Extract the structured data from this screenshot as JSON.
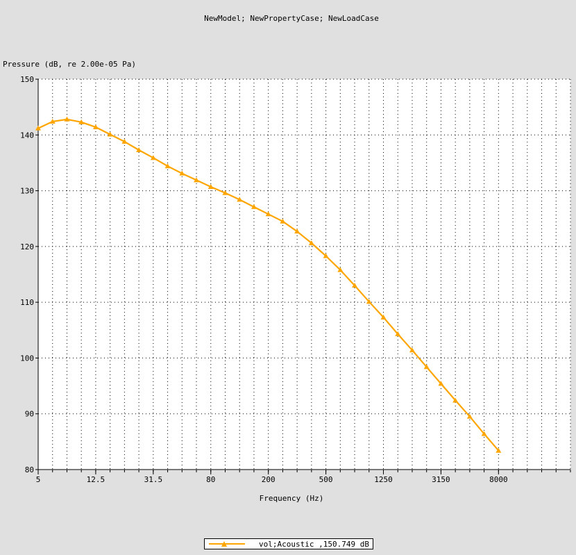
{
  "chart_data": {
    "type": "line",
    "title": "NewModel; NewPropertyCase; NewLoadCase",
    "ylabel": "Pressure (dB, re 2.00e-05 Pa)",
    "xlabel": "Frequency (Hz)",
    "x_scale": "log (1/3-octave bands)",
    "ylim": [
      80,
      150
    ],
    "yticks": [
      80,
      90,
      100,
      110,
      120,
      130,
      140,
      150
    ],
    "x_tick_labels": [
      "5",
      "12.5",
      "31.5",
      "80",
      "200",
      "500",
      "1250",
      "3150",
      "8000"
    ],
    "x_bands": [
      "5",
      "6.3",
      "8",
      "10",
      "12.5",
      "16",
      "20",
      "25",
      "31.5",
      "40",
      "50",
      "63",
      "80",
      "100",
      "125",
      "160",
      "200",
      "250",
      "315",
      "400",
      "500",
      "630",
      "800",
      "1000",
      "1250",
      "1600",
      "2000",
      "2500",
      "3150",
      "4000",
      "5000",
      "6300",
      "8000",
      "10000",
      "12500",
      "16000",
      "20000"
    ],
    "grid": true,
    "legend_position": "bottom-center",
    "series": [
      {
        "name": "vol;Acoustic ,150.749 dB",
        "color": "#ffa500",
        "marker": "triangle",
        "x": [
          "5",
          "6.3",
          "8",
          "10",
          "12.5",
          "16",
          "20",
          "25",
          "31.5",
          "40",
          "50",
          "63",
          "80",
          "100",
          "125",
          "160",
          "200",
          "250",
          "315",
          "400",
          "500",
          "630",
          "800",
          "1000",
          "1250",
          "1600",
          "2000",
          "2500",
          "3150",
          "4000",
          "5000",
          "6300",
          "8000"
        ],
        "y": [
          141.2,
          142.4,
          142.8,
          142.3,
          141.4,
          140.1,
          138.8,
          137.3,
          135.9,
          134.4,
          133.1,
          131.9,
          130.7,
          129.6,
          128.4,
          127.1,
          125.8,
          124.5,
          122.7,
          120.6,
          118.3,
          115.8,
          113.0,
          110.1,
          107.3,
          104.3,
          101.4,
          98.4,
          95.4,
          92.4,
          89.5,
          86.4,
          83.4
        ]
      }
    ]
  }
}
